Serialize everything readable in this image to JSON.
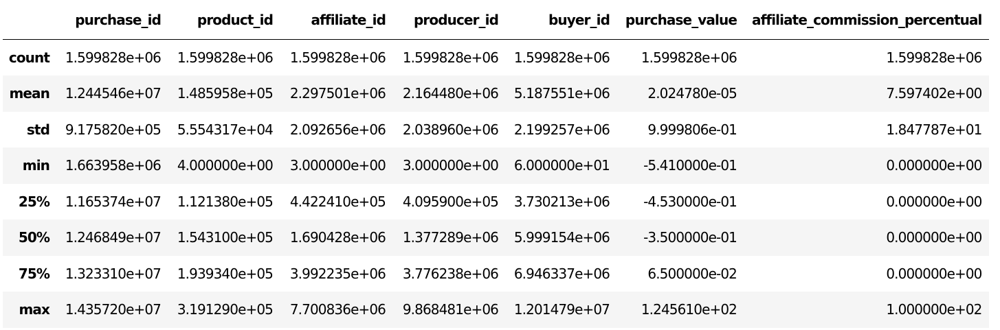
{
  "table": {
    "columns": [
      "",
      "purchase_id",
      "product_id",
      "affiliate_id",
      "producer_id",
      "buyer_id",
      "purchase_value",
      "affiliate_commission_percentual"
    ],
    "rows": [
      {
        "label": "count",
        "values": [
          "1.599828e+06",
          "1.599828e+06",
          "1.599828e+06",
          "1.599828e+06",
          "1.599828e+06",
          "1.599828e+06",
          "1.599828e+06"
        ]
      },
      {
        "label": "mean",
        "values": [
          "1.244546e+07",
          "1.485958e+05",
          "2.297501e+06",
          "2.164480e+06",
          "5.187551e+06",
          "2.024780e-05",
          "7.597402e+00"
        ]
      },
      {
        "label": "std",
        "values": [
          "9.175820e+05",
          "5.554317e+04",
          "2.092656e+06",
          "2.038960e+06",
          "2.199257e+06",
          "9.999806e-01",
          "1.847787e+01"
        ]
      },
      {
        "label": "min",
        "values": [
          "1.663958e+06",
          "4.000000e+00",
          "3.000000e+00",
          "3.000000e+00",
          "6.000000e+01",
          "-5.410000e-01",
          "0.000000e+00"
        ]
      },
      {
        "label": "25%",
        "values": [
          "1.165374e+07",
          "1.121380e+05",
          "4.422410e+05",
          "4.095900e+05",
          "3.730213e+06",
          "-4.530000e-01",
          "0.000000e+00"
        ]
      },
      {
        "label": "50%",
        "values": [
          "1.246849e+07",
          "1.543100e+05",
          "1.690428e+06",
          "1.377289e+06",
          "5.999154e+06",
          "-3.500000e-01",
          "0.000000e+00"
        ]
      },
      {
        "label": "75%",
        "values": [
          "1.323310e+07",
          "1.939340e+05",
          "3.992235e+06",
          "3.776238e+06",
          "6.946337e+06",
          "6.500000e-02",
          "0.000000e+00"
        ]
      },
      {
        "label": "max",
        "values": [
          "1.435720e+07",
          "3.191290e+05",
          "7.700836e+06",
          "9.868481e+06",
          "1.201479e+07",
          "1.245610e+02",
          "1.000000e+02"
        ]
      }
    ]
  },
  "colors": {
    "text": "#000000",
    "stripe": "#f5f5f5",
    "header_rule": "#000000",
    "background": "#ffffff"
  }
}
